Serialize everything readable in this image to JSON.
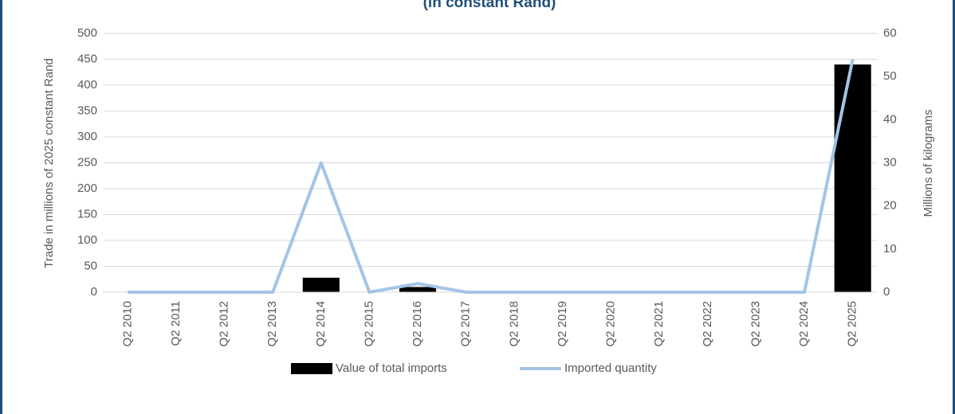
{
  "chart_data": {
    "type": "combo",
    "title": "(in constant Rand)",
    "categories": [
      "Q2 2010",
      "Q2 2011",
      "Q2 2012",
      "Q2 2013",
      "Q2 2014",
      "Q2 2015",
      "Q2 2016",
      "Q2 2017",
      "Q2 2018",
      "Q2 2019",
      "Q2 2020",
      "Q2 2021",
      "Q2 2022",
      "Q2 2023",
      "Q2 2024",
      "Q2 2025"
    ],
    "series": [
      {
        "name": "Value of total imports",
        "type": "bar",
        "color": "#000000",
        "values": [
          0,
          0,
          0,
          0,
          28,
          0,
          10,
          0,
          0,
          0,
          0,
          0,
          0,
          0,
          0,
          440
        ]
      },
      {
        "name": "Imported quantity",
        "type": "line",
        "axis": "y2",
        "color": "#a3c4e6",
        "values": [
          0,
          0,
          0,
          0,
          30,
          0,
          2,
          0,
          0,
          0,
          0,
          0,
          0,
          0,
          0,
          54
        ]
      }
    ],
    "ylabel": "Trade in millions of 2025 constant Rand",
    "y2label": "Millions of kilograms",
    "ylim": [
      0,
      500
    ],
    "yticks": [
      0,
      50,
      100,
      150,
      200,
      250,
      300,
      350,
      400,
      450,
      500
    ],
    "y2lim": [
      0,
      60
    ],
    "y2ticks": [
      0,
      10,
      20,
      30,
      40,
      50,
      60
    ],
    "grid": true,
    "legend": "bottom"
  }
}
